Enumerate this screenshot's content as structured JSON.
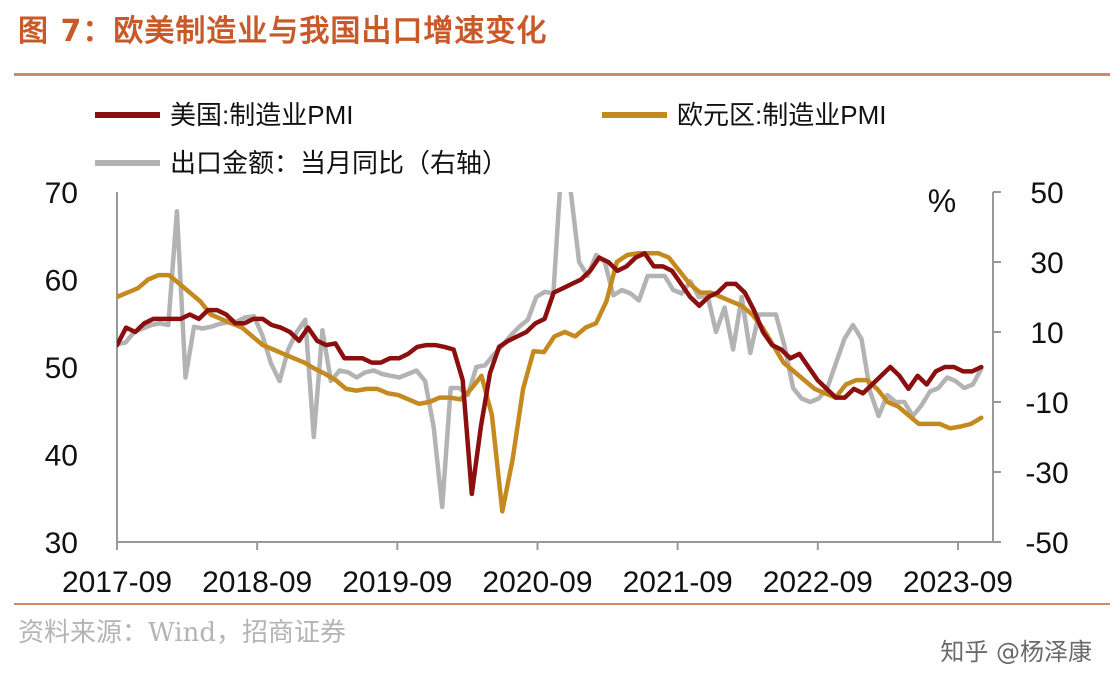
{
  "header": {
    "title": "图 7：欧美制造业与我国出口增速变化"
  },
  "footer": {
    "source": "资料来源：Wind，招商证券",
    "watermark": "知乎 @杨泽康"
  },
  "colors": {
    "us_pmi": "#8b0f0f",
    "eu_pmi": "#c48a1f",
    "exports": "#b3b3b3",
    "accent": "#c85a2a"
  },
  "chart_data": {
    "type": "line",
    "legend": [
      "美国:制造业PMI",
      "欧元区:制造业PMI",
      "出口金额：当月同比（右轴）"
    ],
    "y_left": {
      "ticks": [
        "70",
        "60",
        "50",
        "40",
        "30"
      ],
      "ylim": [
        30,
        70
      ]
    },
    "y_right": {
      "unit": "%",
      "ticks": [
        "50",
        "30",
        "10",
        "-10",
        "-30",
        "-50"
      ],
      "ylim": [
        -50,
        50
      ]
    },
    "x_ticks": [
      "2017-09",
      "2018-09",
      "2019-09",
      "2020-09",
      "2021-09",
      "2022-09",
      "2023-09"
    ],
    "x_start": "2017-09",
    "x_end": "2023-12",
    "series": [
      {
        "name": "美国:制造业PMI",
        "axis": "left",
        "values": [
          52.5,
          54.5,
          54,
          55,
          55.5,
          55.5,
          55.5,
          55.5,
          56,
          55.5,
          56.5,
          56.5,
          56,
          55,
          55,
          55.5,
          55.5,
          54.8,
          54.5,
          54,
          53,
          54.5,
          53,
          52.5,
          52.7,
          51,
          51,
          51,
          50.5,
          50.5,
          51,
          51,
          51.5,
          52.3,
          52.5,
          52.5,
          52.3,
          52,
          48.5,
          35.5,
          43.2,
          49.3,
          52.3,
          53,
          53.5,
          54,
          55,
          55.5,
          58.5,
          59,
          59.5,
          60,
          61,
          62.5,
          62,
          61,
          61.5,
          62.5,
          63,
          61.5,
          61.5,
          61,
          59.5,
          58,
          57,
          58,
          58.5,
          59.5,
          59.5,
          58.5,
          56.5,
          54,
          52.5,
          52,
          51,
          51.5,
          50,
          48.5,
          47.5,
          46.5,
          46.5,
          47.5,
          47,
          48,
          49,
          50,
          49,
          47.5,
          49,
          48,
          49.5,
          50,
          50,
          49.5,
          49.5,
          50
        ]
      },
      {
        "name": "欧元区:制造业PMI",
        "axis": "left",
        "values": [
          58,
          58.5,
          59,
          60,
          60.5,
          60.5,
          59.5,
          58.5,
          57.5,
          56,
          55.5,
          55,
          54.5,
          53.5,
          52.5,
          52,
          51.5,
          51,
          50.5,
          49.8,
          49.2,
          48.5,
          47.5,
          47.3,
          47.5,
          47.5,
          47,
          46.8,
          46.3,
          45.8,
          46,
          46.5,
          46.5,
          46.3,
          47.5,
          49,
          44.5,
          33.5,
          39.5,
          47.5,
          51.8,
          51.7,
          53.5,
          54,
          53.5,
          54.5,
          55,
          57.5,
          62,
          62.8,
          63,
          63,
          63,
          62.5,
          61,
          59.5,
          58.5,
          58.5,
          58,
          57.5,
          57,
          56,
          54.5,
          52.5,
          50.5,
          49.5,
          48.5,
          47.5,
          47,
          46.5,
          48,
          48.5,
          48.5,
          47.5,
          46,
          45.5,
          44.5,
          43.5,
          43.5,
          43.5,
          43,
          43.2,
          43.5,
          44.2
        ]
      },
      {
        "name": "出口金额：当月同比（右轴）",
        "axis": "right",
        "values": [
          6.5,
          7,
          10,
          11,
          12,
          12.5,
          12,
          44.5,
          -3,
          11.5,
          11,
          11.5,
          12.3,
          12.8,
          13,
          14.2,
          14.5,
          9,
          1,
          -4,
          5,
          10,
          13.5,
          -20,
          10.5,
          -4,
          -1,
          -1.5,
          -3,
          -1.5,
          -1,
          -2,
          -2.5,
          -3,
          -2,
          -1,
          -4,
          -17,
          -40,
          -6,
          -6,
          -8,
          0,
          0.5,
          3.5,
          6,
          9,
          11.5,
          13.5,
          20,
          21.5,
          21,
          60.5,
          50.5,
          30,
          26,
          32,
          30,
          20.5,
          22,
          21,
          19,
          26,
          26,
          26,
          22,
          21,
          24.5,
          20,
          20.5,
          10,
          17,
          5,
          20,
          4,
          15,
          15,
          15,
          6,
          -6,
          -9,
          -10,
          -9,
          -6,
          1,
          8,
          12,
          8,
          -7,
          -14,
          -8,
          -10,
          -10,
          -14,
          -11,
          -7,
          -6,
          -3,
          -4,
          -6,
          -5,
          -0.5
        ]
      }
    ]
  }
}
